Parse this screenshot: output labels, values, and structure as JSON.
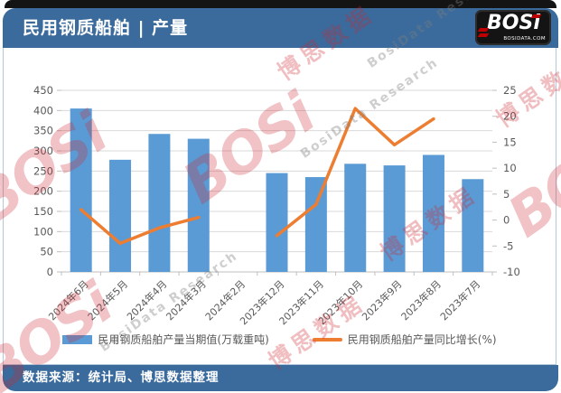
{
  "header": {
    "title": "民用钢质船舶 | 产量",
    "logo": {
      "text": "BOSi",
      "sub": "BOSIDATA.COM"
    }
  },
  "footer": {
    "source": "数据来源：统计局、博思数据整理"
  },
  "legend": {
    "bars": "民用钢质船舶产量当期值(万载重吨)",
    "line": "民用钢质船舶产量同比增长(%)"
  },
  "watermark": {
    "logo": "BOSi",
    "cn": "博思数据",
    "en": "BosiData Research"
  },
  "colors": {
    "bar": "#5B9BD5",
    "line": "#ED7D31",
    "header_bg": "#3A6B9C",
    "grid": "#D9D9D9",
    "axis_line": "#BFBFBF",
    "axis_text": "#595959",
    "logo_red": "#C00000"
  },
  "chart_data": {
    "type": "bar",
    "subtype": "bar+line combo, dual axis",
    "categories": [
      "2024年6月",
      "2024年5月",
      "2024年4月",
      "2024年3月",
      "2024年2月",
      "2023年12月",
      "2023年11月",
      "2023年10月",
      "2023年9月",
      "2023年8月",
      "2023年7月"
    ],
    "series": [
      {
        "name": "民用钢质船舶产量当期值(万载重吨)",
        "type": "bar",
        "axis": "left",
        "values": [
          405,
          278,
          342,
          330,
          null,
          245,
          235,
          268,
          264,
          290,
          230
        ]
      },
      {
        "name": "民用钢质船舶产量同比增长(%)",
        "type": "line",
        "axis": "right",
        "values": [
          2,
          -4.5,
          -1.5,
          0.5,
          null,
          -3,
          3,
          21.5,
          14.5,
          19.5,
          null
        ]
      }
    ],
    "left_axis": {
      "min": 0,
      "max": 450,
      "step": 50
    },
    "right_axis": {
      "min": -10,
      "max": 25,
      "step": 5
    },
    "grid": true,
    "legend_position": "bottom",
    "title": "民用钢质船舶 | 产量",
    "xlabel": "",
    "ylabel_left": "万载重吨",
    "ylabel_right": "%"
  }
}
